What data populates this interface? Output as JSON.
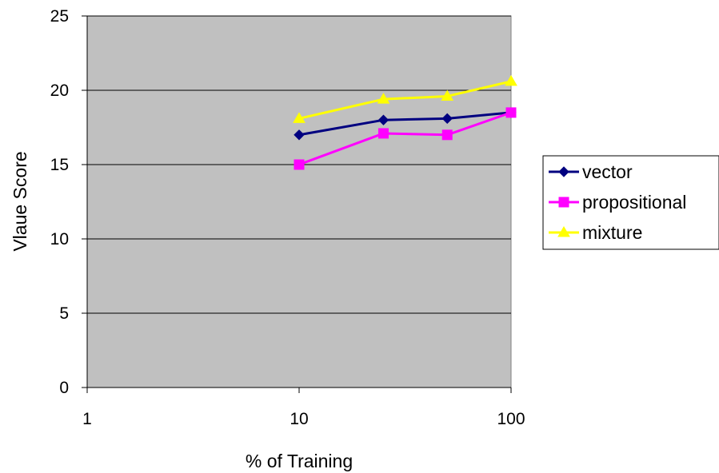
{
  "chart_data": {
    "type": "line",
    "title": "",
    "xlabel": "% of Training",
    "ylabel": "Vlaue Score",
    "x_scale": "log",
    "xlim": [
      1,
      100
    ],
    "ylim": [
      0,
      25
    ],
    "x_ticks": [
      1,
      10,
      100
    ],
    "y_ticks": [
      0,
      5,
      10,
      15,
      20,
      25
    ],
    "x_tick_labels": [
      "1",
      "10",
      "100"
    ],
    "y_tick_labels": [
      "0",
      "5",
      "10",
      "15",
      "20",
      "25"
    ],
    "grid": "horizontal",
    "plot_background": "#c0c0c0",
    "legend_position": "right",
    "series": [
      {
        "name": "vector",
        "marker": "diamond",
        "color": "#000080",
        "x": [
          10,
          25,
          50,
          100
        ],
        "y": [
          17.0,
          18.0,
          18.1,
          18.5
        ]
      },
      {
        "name": "propositional",
        "marker": "square",
        "color": "#ff00ff",
        "x": [
          10,
          25,
          50,
          100
        ],
        "y": [
          15.0,
          17.1,
          17.0,
          18.5
        ]
      },
      {
        "name": "mixture",
        "marker": "triangle",
        "color": "#ffff00",
        "x": [
          10,
          25,
          50,
          100
        ],
        "y": [
          18.1,
          19.4,
          19.6,
          20.6
        ]
      }
    ]
  }
}
